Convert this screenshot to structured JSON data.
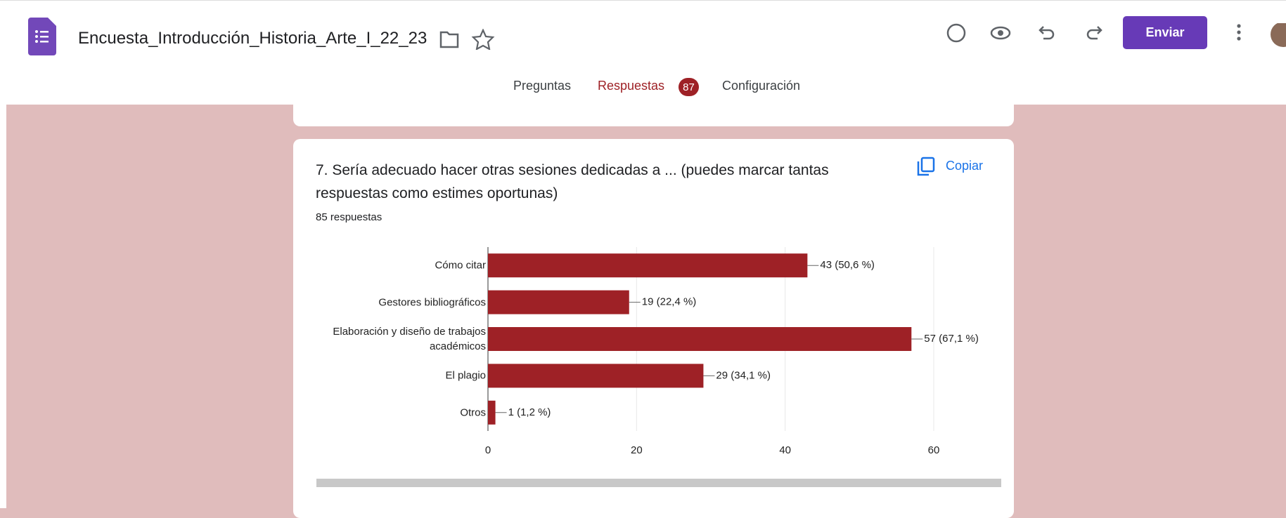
{
  "header": {
    "title": "Encuesta_Introducción_Historia_Arte_I_22_23",
    "send_button": "Enviar",
    "tabs": [
      "Preguntas",
      "Respuestas",
      "Configuración"
    ],
    "responses_badge": "87"
  },
  "card": {
    "question": "7. Sería adecuado hacer otras sesiones dedicadas a ... (puedes marcar tantas respuestas como estimes oportunas)",
    "response_count": "85 respuestas",
    "copy_button": "Copiar"
  },
  "chart_data": {
    "type": "bar",
    "orientation": "horizontal",
    "categories": [
      "Cómo citar",
      "Gestores bibliográficos",
      "Elaboración y diseño de trabajos académicos",
      "El plagio",
      "Otros"
    ],
    "values": [
      43,
      19,
      57,
      29,
      1
    ],
    "value_labels": [
      "43 (50,6 %)",
      "19 (22,4 %)",
      "57 (67,1 %)",
      "29 (34,1 %)",
      "1 (1,2 %)"
    ],
    "color": "#9e2126",
    "xlim": [
      0,
      60
    ],
    "xticks": [
      0,
      20,
      40,
      60
    ],
    "grid": true
  }
}
